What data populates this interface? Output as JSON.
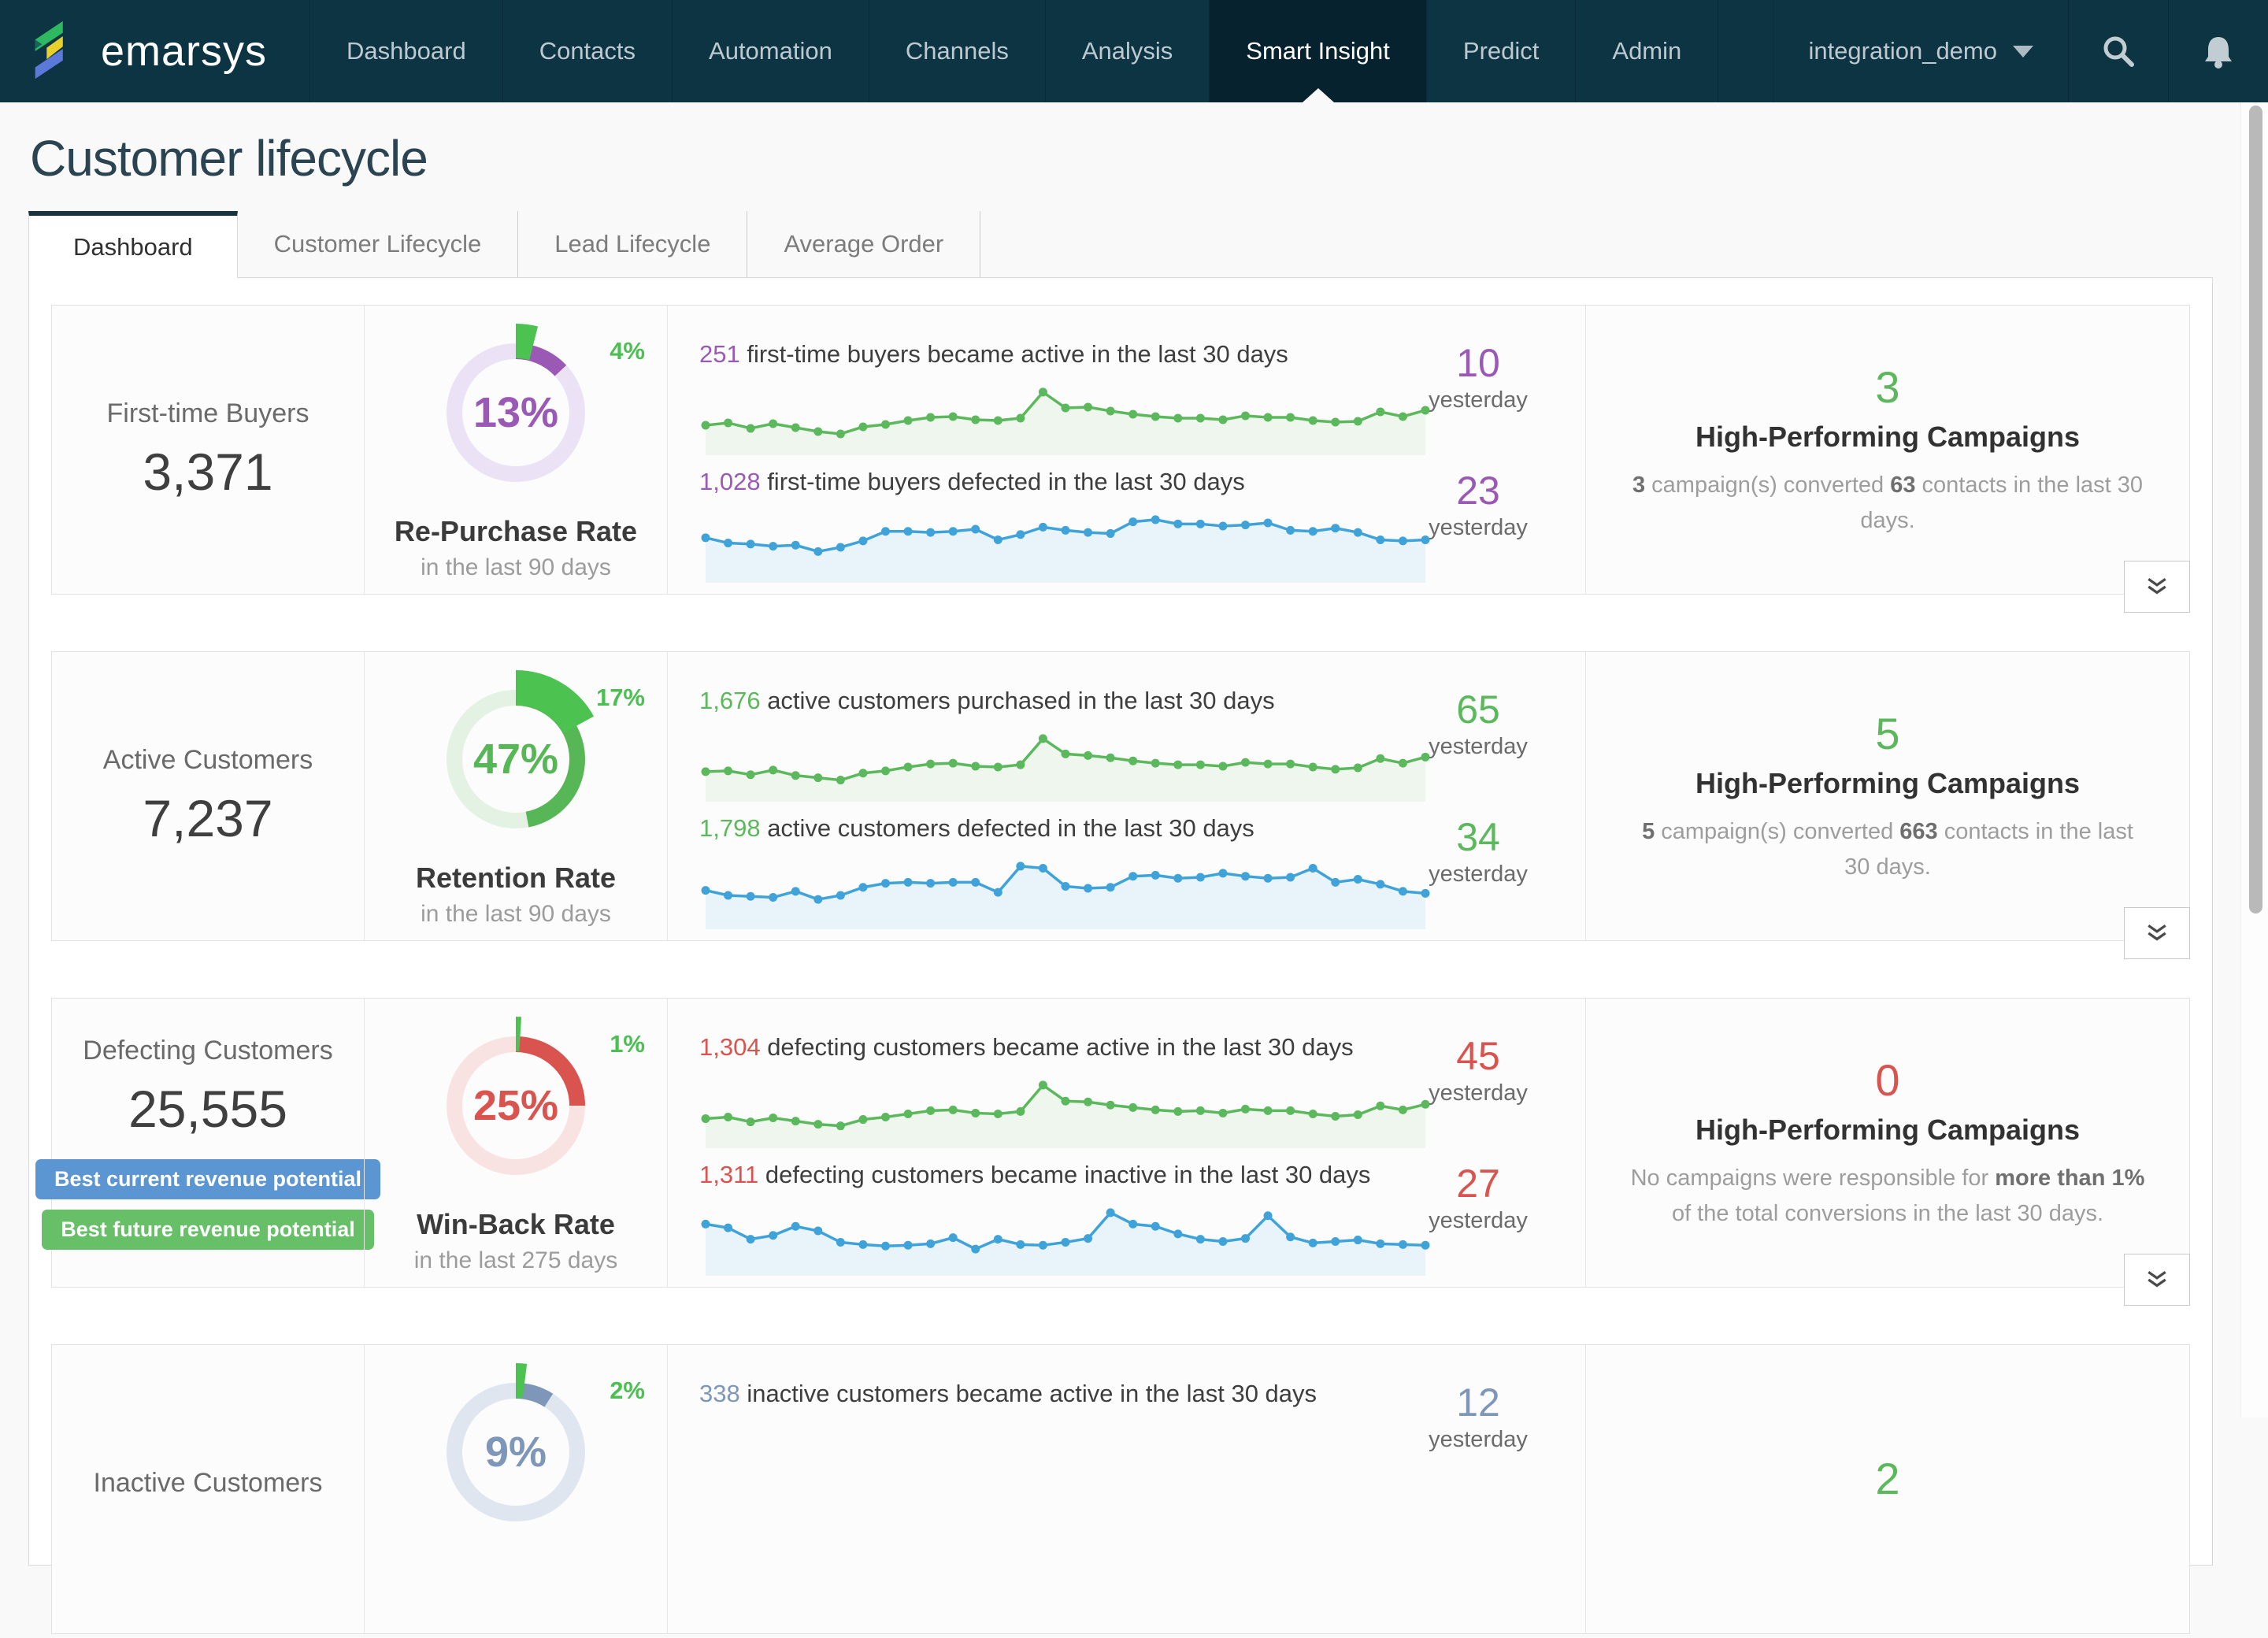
{
  "theme": {
    "navbar-bg": "#0d3443",
    "navbar-active-bg": "#06222e",
    "navbar-text": "#bcc9d0",
    "title-color": "#2b4452",
    "accent-green": "#5cb85c",
    "accent-purple": "#9b59b6",
    "accent-red": "#d9534f",
    "accent-slate": "#7e96b8",
    "spark-blue": "#3fa3d9",
    "wedge-green": "#4cc251"
  },
  "nav": {
    "brand": "emarsys",
    "items": [
      {
        "label": "Dashboard"
      },
      {
        "label": "Contacts"
      },
      {
        "label": "Automation"
      },
      {
        "label": "Channels"
      },
      {
        "label": "Analysis"
      },
      {
        "label": "Smart Insight",
        "active": true
      },
      {
        "label": "Predict"
      },
      {
        "label": "Admin"
      }
    ],
    "account": "integration_demo"
  },
  "page": {
    "title": "Customer lifecycle"
  },
  "tabs": [
    {
      "label": "Dashboard",
      "active": true
    },
    {
      "label": "Customer Lifecycle"
    },
    {
      "label": "Lead Lifecycle"
    },
    {
      "label": "Average Order"
    }
  ],
  "rows": [
    {
      "label": "First-time Buyers",
      "value": "3,371",
      "accent": "#9b59b6",
      "donut": {
        "rate_pct": 13,
        "rate_label": "13%",
        "campaign_pct": 4,
        "campaign_label": "4%",
        "color": "#9b59b6",
        "track": "#ece2f5",
        "campaign_color": "#4cc251",
        "title": "Re-Purchase Rate",
        "subtitle": "in the last 90 days"
      },
      "trends": [
        {
          "lead": "251",
          "text": " first-time buyers became active in the last 30 days",
          "yesterday": "10",
          "yesterday_label": "yesterday",
          "line": "#5cb85c",
          "fill": "#eef6ee",
          "points": [
            32,
            35,
            28,
            34,
            29,
            24,
            21,
            30,
            33,
            38,
            42,
            43,
            39,
            38,
            41,
            74,
            54,
            55,
            50,
            46,
            43,
            41,
            41,
            39,
            44,
            42,
            42,
            38,
            36,
            37,
            49,
            43,
            51
          ]
        },
        {
          "lead": "1,028",
          "text": " first-time buyers defected in the last 30 days",
          "yesterday": "23",
          "yesterday_label": "yesterday",
          "line": "#3fa3d9",
          "fill": "#e8f3fa",
          "points": [
            38,
            33,
            32,
            30,
            31,
            25,
            29,
            35,
            44,
            44,
            43,
            44,
            46,
            36,
            41,
            48,
            45,
            43,
            42,
            53,
            55,
            51,
            51,
            49,
            50,
            52,
            45,
            44,
            47,
            43,
            36,
            35,
            36
          ]
        }
      ],
      "campaigns": {
        "count": "3",
        "color": "#5cb85c",
        "title": "High-Performing Campaigns",
        "desc": [
          {
            "t": "3",
            "b": true
          },
          {
            "t": " campaign(s) converted "
          },
          {
            "t": "63",
            "b": true
          },
          {
            "t": " contacts in the last 30 days."
          }
        ]
      }
    },
    {
      "label": "Active Customers",
      "value": "7,237",
      "accent": "#5cb85c",
      "donut": {
        "rate_pct": 47,
        "rate_label": "47%",
        "campaign_pct": 17,
        "campaign_label": "17%",
        "color": "#57b757",
        "track": "#e4f2e4",
        "campaign_color": "#4cc251",
        "title": "Retention Rate",
        "subtitle": "in the last 90 days"
      },
      "trends": [
        {
          "lead": "1,676",
          "text": " active customers purchased in the last 30 days",
          "yesterday": "65",
          "yesterday_label": "yesterday",
          "line": "#5cb85c",
          "fill": "#eef6ee",
          "points": [
            33,
            34,
            29,
            35,
            28,
            25,
            22,
            31,
            34,
            39,
            43,
            44,
            40,
            39,
            42,
            76,
            56,
            54,
            51,
            47,
            44,
            42,
            42,
            40,
            45,
            43,
            43,
            39,
            36,
            38,
            50,
            44,
            52
          ]
        },
        {
          "lead": "1,798",
          "text": " active customers defected in the last 30 days",
          "yesterday": "34",
          "yesterday_label": "yesterday",
          "line": "#3fa3d9",
          "fill": "#e8f3fa",
          "points": [
            34,
            29,
            28,
            27,
            33,
            25,
            29,
            37,
            41,
            42,
            41,
            42,
            42,
            32,
            58,
            56,
            38,
            36,
            37,
            48,
            49,
            46,
            47,
            51,
            48,
            46,
            47,
            56,
            42,
            45,
            40,
            33,
            31
          ]
        }
      ],
      "campaigns": {
        "count": "5",
        "color": "#5cb85c",
        "title": "High-Performing Campaigns",
        "desc": [
          {
            "t": "5",
            "b": true
          },
          {
            "t": " campaign(s) converted "
          },
          {
            "t": "663",
            "b": true
          },
          {
            "t": " contacts in the last 30 days."
          }
        ]
      }
    },
    {
      "label": "Defecting Customers",
      "value": "25,555",
      "accent": "#d9534f",
      "badges": [
        {
          "label": "Best current revenue potential",
          "color": "#5b96d2"
        },
        {
          "label": "Best future revenue potential",
          "color": "#67bf67"
        }
      ],
      "donut": {
        "rate_pct": 25,
        "rate_label": "25%",
        "campaign_pct": 1,
        "campaign_label": "1%",
        "color": "#d9534f",
        "track": "#f9e3e2",
        "campaign_color": "#4cc251",
        "title": "Win-Back Rate",
        "subtitle": "in the last 275 days"
      },
      "trends": [
        {
          "lead": "1,304",
          "text": " defecting customers became active in the last 30 days",
          "yesterday": "45",
          "yesterday_label": "yesterday",
          "line": "#5cb85c",
          "fill": "#eef6ee",
          "points": [
            31,
            33,
            27,
            32,
            28,
            24,
            22,
            30,
            33,
            37,
            41,
            42,
            38,
            37,
            40,
            73,
            53,
            52,
            48,
            45,
            42,
            40,
            41,
            38,
            43,
            41,
            41,
            37,
            34,
            36,
            47,
            42,
            49
          ]
        },
        {
          "lead": "1,311",
          "text": " defecting customers became inactive in the last 30 days",
          "yesterday": "27",
          "yesterday_label": "yesterday",
          "line": "#3fa3d9",
          "fill": "#e8f3fa",
          "points": [
            62,
            57,
            42,
            47,
            59,
            53,
            38,
            35,
            33,
            34,
            36,
            44,
            29,
            42,
            35,
            34,
            38,
            43,
            77,
            62,
            59,
            49,
            42,
            39,
            43,
            73,
            45,
            37,
            39,
            41,
            36,
            35,
            34
          ]
        }
      ],
      "campaigns": {
        "count": "0",
        "color": "#d9534f",
        "title": "High-Performing Campaigns",
        "desc": [
          {
            "t": "No campaigns were responsible for "
          },
          {
            "t": "more than 1%",
            "b": true
          },
          {
            "t": " of the total conversions in the last 30 days."
          }
        ]
      }
    },
    {
      "label": "Inactive Customers",
      "value": "",
      "accent": "#7e96b8",
      "donut": {
        "rate_pct": 9,
        "rate_label": "9%",
        "campaign_pct": 2,
        "campaign_label": "2%",
        "color": "#7e96b8",
        "track": "#e0e6f0",
        "campaign_color": "#4cc251",
        "title": "",
        "subtitle": ""
      },
      "trends": [
        {
          "lead": "338",
          "text": " inactive customers became active in the last 30 days",
          "yesterday": "12",
          "yesterday_label": "yesterday",
          "line": "#5cb85c",
          "fill": "#eef6ee",
          "points": []
        },
        {
          "lead": "",
          "text": "",
          "yesterday": "",
          "yesterday_label": "",
          "line": "#3fa3d9",
          "fill": "#e8f3fa",
          "points": []
        }
      ],
      "campaigns": {
        "count": "2",
        "color": "#5cb85c",
        "title": "",
        "desc": []
      }
    }
  ]
}
